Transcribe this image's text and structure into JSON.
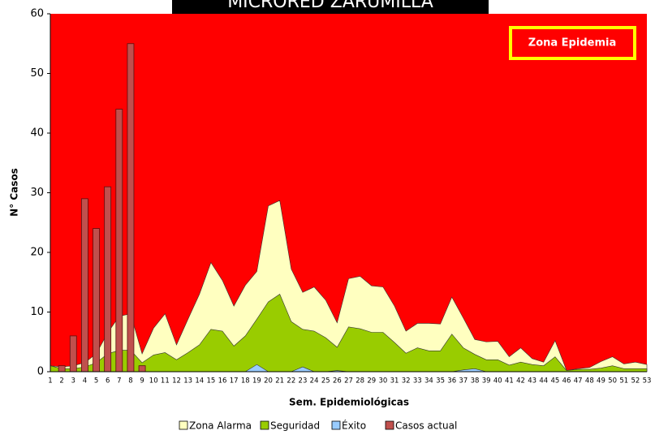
{
  "chart_data": {
    "type": "endemic-channel",
    "title": "MICRORED ZARUMILLA",
    "annotation": "Zona Epidemia",
    "background_color": "#ff0000",
    "xlabel": "Sem. Epidemiológicas",
    "ylabel": "N° Casos",
    "ylim": [
      0,
      60
    ],
    "yticks": [
      0,
      10,
      20,
      30,
      40,
      50,
      60
    ],
    "categories": [
      "1",
      "2",
      "3",
      "4",
      "5",
      "6",
      "7",
      "8",
      "9",
      "10",
      "11",
      "12",
      "13",
      "14",
      "15",
      "16",
      "17",
      "18",
      "19",
      "20",
      "21",
      "22",
      "23",
      "24",
      "25",
      "26",
      "27",
      "28",
      "29",
      "30",
      "31",
      "32",
      "33",
      "34",
      "35",
      "36",
      "37",
      "38",
      "39",
      "40",
      "41",
      "42",
      "43",
      "44",
      "45",
      "46",
      "47",
      "48",
      "49",
      "50",
      "51",
      "52",
      "53"
    ],
    "series": [
      {
        "name": "Zona Alarma",
        "kind": "area",
        "color": "#ffffc0",
        "values": [
          1,
          0.8,
          1,
          1.5,
          3,
          6.5,
          9.3,
          9.7,
          3,
          7.3,
          9.7,
          4.5,
          8.8,
          13,
          18.3,
          15.3,
          11,
          14.5,
          16.8,
          27.8,
          28.7,
          17.2,
          13.3,
          14.2,
          12,
          8.2,
          15.6,
          16,
          14.4,
          14.2,
          11,
          6.8,
          8.1,
          8.1,
          8,
          12.5,
          9,
          5.4,
          5,
          5.1,
          2.5,
          4,
          2.2,
          1.6,
          5.2,
          0.2,
          0.5,
          0.7,
          1.7,
          2.5,
          1.3,
          1.6,
          1.2
        ]
      },
      {
        "name": "Seguridad",
        "kind": "area",
        "color": "#99cc00",
        "values": [
          1,
          0.5,
          0.5,
          0.8,
          1.5,
          3,
          3.6,
          3.6,
          1.5,
          2.8,
          3.2,
          2,
          3.2,
          4.5,
          7.1,
          6.8,
          4.3,
          6,
          8.8,
          11.7,
          13,
          8.4,
          7.1,
          6.8,
          5.7,
          4.1,
          7.5,
          7.2,
          6.6,
          6.6,
          4.9,
          3.1,
          4,
          3.5,
          3.5,
          6.3,
          4,
          2.9,
          2,
          2,
          1.1,
          1.6,
          1.2,
          1,
          2.5,
          0.2,
          0.4,
          0.4,
          0.6,
          1,
          0.5,
          0.5,
          0.5
        ]
      },
      {
        "name": "Éxito",
        "kind": "area",
        "color": "#99ccff",
        "values": [
          0,
          0,
          0,
          0,
          0,
          0,
          0,
          0,
          0,
          0,
          0,
          0,
          0,
          0,
          0,
          0,
          0,
          0,
          1.2,
          0,
          0,
          0,
          0.8,
          0,
          0,
          0.2,
          0,
          0,
          0,
          0,
          0,
          0,
          0,
          0,
          0,
          0,
          0.3,
          0.5,
          0,
          0,
          0,
          0,
          0,
          0,
          0,
          0,
          0,
          0,
          0,
          0,
          0,
          0,
          0
        ]
      },
      {
        "name": "Casos actual",
        "kind": "bar",
        "color": "#c0504d",
        "values": [
          null,
          1,
          6,
          29,
          24,
          31,
          44,
          55,
          1,
          null,
          null,
          null,
          null,
          null,
          null,
          null,
          null,
          null,
          null,
          null,
          null,
          null,
          null,
          null,
          null,
          null,
          null,
          null,
          null,
          null,
          null,
          null,
          null,
          null,
          null,
          null,
          null,
          null,
          null,
          null,
          null,
          null,
          null,
          null,
          null,
          null,
          null,
          null,
          null,
          null,
          null,
          null,
          null
        ]
      }
    ]
  }
}
